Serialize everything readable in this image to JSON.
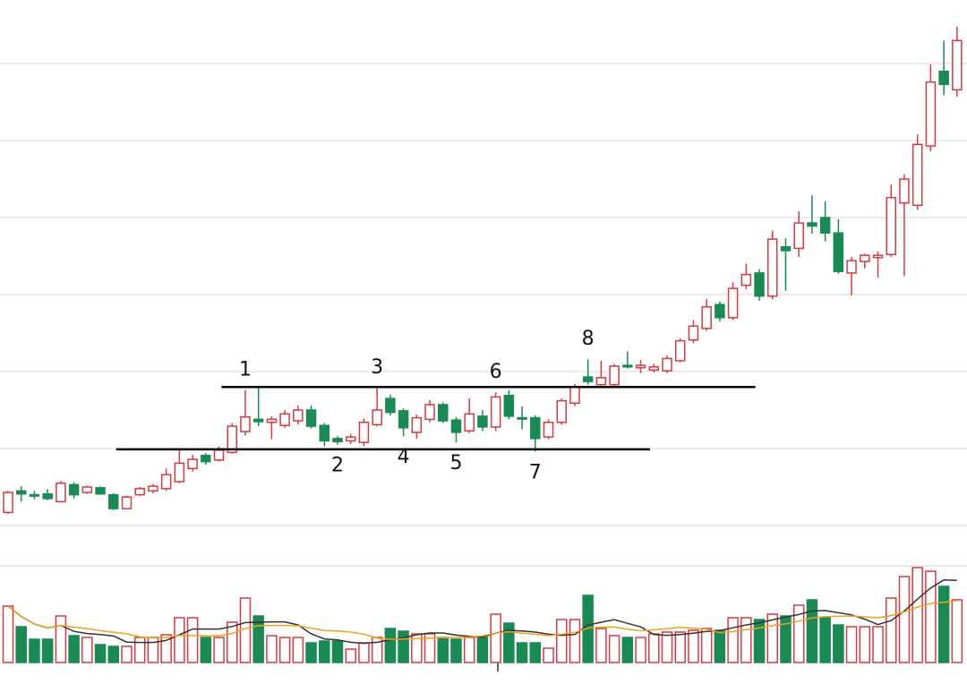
{
  "chart_data": {
    "type": "candlestick",
    "ylim": [
      -0.35,
      68.26
    ],
    "grid_values": [
      0,
      10,
      20,
      30,
      40,
      50,
      60
    ],
    "up_color": "#d9393f",
    "down_color": "#1a8a55",
    "ohlc": {
      "open": [
        1.7,
        4.5,
        4.0,
        4.1,
        3.1,
        5.3,
        4.3,
        4.9,
        4.0,
        2.2,
        4.0,
        4.5,
        4.8,
        5.7,
        7.4,
        9.1,
        8.5,
        9.5,
        12.2,
        13.8,
        13.4,
        13.0,
        13.6,
        15.0,
        13.0,
        11.3,
        11.0,
        10.8,
        13.1,
        16.5,
        14.9,
        12.1,
        13.8,
        15.7,
        13.7,
        12.3,
        14.2,
        12.8,
        16.9,
        14.0,
        14.0,
        11.5,
        13.4,
        15.9,
        19.3,
        18.3,
        18.3,
        20.8,
        20.5,
        20.2,
        20.1,
        21.4,
        24.1,
        25.6,
        28.7,
        27.0,
        31.2,
        32.8,
        29.8,
        36.2,
        36.0,
        39.3,
        40.0,
        38.0,
        32.8,
        34.3,
        34.8,
        35.2,
        41.9,
        41.6,
        49.3,
        59.0,
        56.6
      ],
      "high": [
        4.5,
        5.1,
        4.5,
        4.7,
        5.8,
        5.6,
        5.2,
        5.1,
        4.2,
        3.9,
        5.0,
        5.4,
        7.4,
        10.0,
        9.2,
        9.4,
        10.3,
        13.3,
        17.6,
        17.9,
        14.2,
        15.0,
        15.6,
        15.6,
        13.3,
        11.6,
        11.9,
        13.9,
        17.9,
        17.0,
        15.2,
        14.4,
        16.3,
        16.0,
        14.1,
        16.5,
        15.0,
        17.3,
        17.6,
        15.5,
        14.3,
        13.8,
        16.5,
        18.4,
        21.6,
        21.4,
        21.0,
        22.6,
        21.5,
        21.0,
        22.1,
        24.3,
        26.7,
        29.4,
        29.1,
        31.6,
        34.0,
        33.3,
        38.3,
        37.3,
        40.8,
        42.9,
        42.1,
        39.8,
        34.9,
        35.3,
        35.6,
        44.3,
        45.6,
        50.8,
        59.9,
        63.0,
        64.8
      ],
      "low": [
        1.5,
        3.1,
        3.4,
        3.3,
        3.0,
        3.5,
        4.1,
        4.0,
        2.0,
        2.1,
        3.8,
        4.2,
        4.5,
        5.5,
        7.0,
        7.9,
        8.3,
        9.3,
        11.7,
        12.9,
        11.2,
        12.7,
        13.1,
        12.6,
        10.3,
        10.5,
        10.6,
        10.3,
        12.9,
        14.3,
        11.6,
        11.3,
        13.4,
        13.3,
        10.8,
        12.0,
        12.3,
        12.3,
        13.8,
        12.5,
        9.6,
        11.2,
        13.1,
        15.5,
        18.3,
        17.9,
        18.0,
        20.4,
        19.8,
        19.9,
        19.8,
        21.2,
        23.7,
        25.3,
        26.5,
        26.7,
        30.7,
        29.2,
        29.4,
        30.5,
        34.9,
        37.9,
        36.9,
        32.7,
        29.9,
        33.4,
        32.2,
        34.9,
        32.4,
        41.0,
        48.6,
        55.9,
        55.7
      ],
      "close": [
        4.3,
        4.1,
        3.9,
        3.5,
        5.5,
        4.0,
        5.0,
        4.1,
        2.2,
        3.7,
        4.8,
        5.1,
        6.6,
        8.1,
        8.6,
        8.3,
        9.8,
        12.9,
        14.1,
        13.5,
        13.8,
        14.5,
        15.0,
        12.9,
        11.0,
        10.9,
        11.5,
        13.4,
        15.0,
        14.7,
        12.7,
        14.0,
        15.7,
        13.6,
        12.1,
        14.5,
        12.8,
        16.7,
        14.2,
        13.9,
        11.3,
        13.4,
        16.2,
        18.0,
        18.7,
        19.2,
        20.7,
        20.6,
        20.8,
        20.6,
        21.7,
        24.0,
        25.9,
        28.4,
        27.0,
        30.8,
        32.6,
        29.8,
        37.2,
        35.7,
        39.3,
        38.9,
        38.0,
        33.0,
        34.4,
        35.1,
        35.1,
        42.6,
        45.0,
        49.5,
        57.6,
        57.3,
        63.0
      ]
    },
    "volume": {
      "ylim": [
        0,
        110
      ],
      "values": [
        63,
        40,
        26,
        26,
        52,
        30,
        28,
        20,
        18,
        18,
        28,
        28,
        31,
        50,
        50,
        28,
        28,
        45,
        72,
        52,
        30,
        28,
        28,
        22,
        24,
        24,
        15,
        22,
        28,
        38,
        35,
        32,
        32,
        28,
        26,
        28,
        28,
        54,
        44,
        22,
        22,
        16,
        48,
        48,
        75,
        38,
        30,
        28,
        28,
        32,
        34,
        34,
        36,
        38,
        36,
        50,
        50,
        48,
        54,
        52,
        64,
        70,
        50,
        42,
        40,
        40,
        40,
        72,
        96,
        106,
        102,
        85,
        70
      ]
    },
    "volume_ma": [
      {
        "period": 5,
        "color": "#333333"
      },
      {
        "period": 10,
        "color": "#f0a020"
      }
    ],
    "levels": [
      {
        "value": 18.0,
        "from": 16.2,
        "to": 56.7
      },
      {
        "value": 9.9,
        "from": 8.2,
        "to": 48.7
      }
    ],
    "annotations": [
      {
        "text": "1",
        "index": 18,
        "side": "above"
      },
      {
        "text": "2",
        "index": 25,
        "side": "below"
      },
      {
        "text": "3",
        "index": 28,
        "side": "above"
      },
      {
        "text": "4",
        "index": 30,
        "side": "below"
      },
      {
        "text": "5",
        "index": 34,
        "side": "below"
      },
      {
        "text": "6",
        "index": 37,
        "side": "above"
      },
      {
        "text": "7",
        "index": 40,
        "side": "below"
      },
      {
        "text": "8",
        "index": 44,
        "side": "above"
      }
    ]
  }
}
